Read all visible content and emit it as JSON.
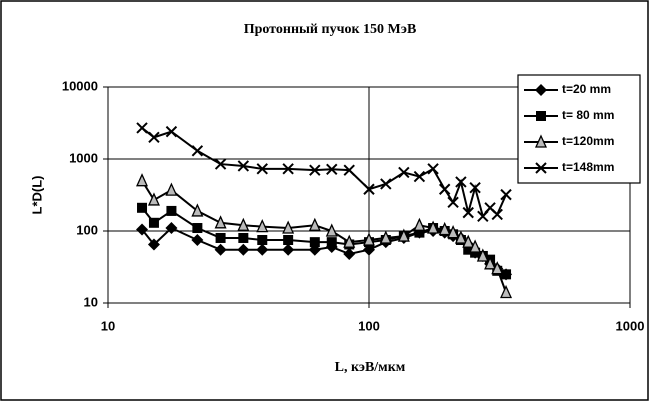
{
  "chart_data": {
    "type": "line",
    "title": "Протонный пучок 150 МэВ",
    "x_label": "L, кэВ/мкм",
    "y_label": "L*D(L)",
    "log_x": true,
    "log_y": true,
    "grid": true,
    "legend": "upper right",
    "xlim": [
      10,
      1000
    ],
    "xticks": [
      10,
      100,
      1000
    ],
    "ylim": [
      10,
      10000
    ],
    "yticks": [
      10,
      100,
      1000,
      10000
    ],
    "x": [
      13.5,
      15,
      17.5,
      22,
      27,
      33,
      39,
      49,
      62,
      72,
      84,
      100,
      116,
      136,
      156,
      176,
      195,
      210,
      225,
      240,
      255,
      273,
      291,
      310,
      335
    ],
    "series": [
      {
        "name": "t=20 mm",
        "color": "#000000",
        "marker": "diamond",
        "values": [
          105,
          65,
          110,
          75,
          55,
          55,
          55,
          55,
          55,
          60,
          48,
          55,
          70,
          80,
          95,
          100,
          95,
          85,
          80,
          65,
          50,
          45,
          35,
          30,
          25
        ]
      },
      {
        "name": "t= 80 mm",
        "color": "#000000",
        "marker": "square",
        "values": [
          210,
          130,
          190,
          110,
          80,
          80,
          75,
          75,
          70,
          70,
          65,
          70,
          75,
          85,
          95,
          110,
          100,
          90,
          75,
          55,
          50,
          45,
          40,
          28,
          25
        ]
      },
      {
        "name": "t=120mm",
        "color": "#000000",
        "marker": "triangle",
        "values": [
          500,
          270,
          370,
          190,
          130,
          120,
          115,
          110,
          120,
          100,
          70,
          75,
          80,
          85,
          120,
          110,
          105,
          95,
          80,
          70,
          60,
          45,
          35,
          30,
          14
        ]
      },
      {
        "name": "t=148mm",
        "color": "#000000",
        "marker": "cross",
        "values": [
          2700,
          2000,
          2400,
          1300,
          850,
          800,
          730,
          730,
          700,
          720,
          700,
          380,
          450,
          650,
          570,
          730,
          380,
          250,
          480,
          180,
          400,
          160,
          210,
          170,
          320
        ]
      }
    ]
  }
}
